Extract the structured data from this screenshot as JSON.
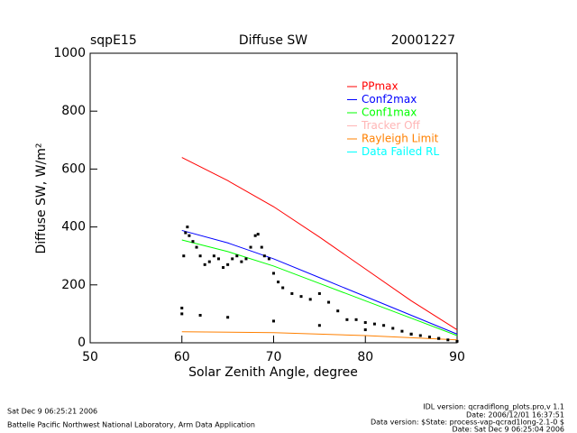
{
  "chart_data": {
    "type": "line",
    "site": "sqpE15",
    "title": "Diffuse SW",
    "date": "20001227",
    "xlabel": "Solar Zenith Angle, degree",
    "ylabel": "Diffuse SW, W/m²",
    "xlim": [
      50,
      90
    ],
    "xticks": [
      50,
      60,
      70,
      80,
      90
    ],
    "ylim": [
      0,
      1000
    ],
    "yticks": [
      0,
      200,
      400,
      600,
      800,
      1000
    ],
    "series": [
      {
        "name": "PPmax",
        "color": "#ff0000",
        "x": [
          60,
          65,
          70,
          75,
          80,
          85,
          90
        ],
        "values": [
          640,
          560,
          470,
          365,
          255,
          145,
          45
        ]
      },
      {
        "name": "Conf2max",
        "color": "#0000ff",
        "x": [
          60,
          65,
          70,
          75,
          80,
          85,
          90
        ],
        "values": [
          388,
          345,
          290,
          225,
          160,
          95,
          30
        ]
      },
      {
        "name": "Conf1max",
        "color": "#00ff00",
        "x": [
          60,
          65,
          70,
          75,
          80,
          85,
          90
        ],
        "values": [
          355,
          315,
          265,
          205,
          145,
          85,
          25
        ]
      },
      {
        "name": "Tracker Off",
        "color": "#ffb6b6",
        "x": [],
        "values": []
      },
      {
        "name": "Rayleigh Limit",
        "color": "#ff8000",
        "x": [
          60,
          70,
          80,
          90
        ],
        "values": [
          38,
          35,
          25,
          10
        ]
      },
      {
        "name": "Data Failed RL",
        "color": "#00ffff",
        "x": [],
        "values": []
      }
    ],
    "points": {
      "color": "#000000",
      "x": [
        60.0,
        60.2,
        60.4,
        60.6,
        60.8,
        61.2,
        61.6,
        62,
        62.5,
        63,
        63.5,
        64,
        64.5,
        65,
        65.5,
        66,
        66.5,
        67,
        67.5,
        68,
        68.3,
        68.7,
        69,
        69.5,
        70,
        70.5,
        71,
        72,
        73,
        74,
        75,
        76,
        77,
        78,
        79,
        80,
        81,
        82,
        83,
        84,
        85,
        86,
        87,
        88,
        89,
        90,
        60,
        62,
        65,
        70,
        75,
        80,
        85,
        88
      ],
      "values": [
        120,
        300,
        380,
        400,
        370,
        350,
        330,
        300,
        270,
        280,
        300,
        290,
        260,
        270,
        290,
        300,
        280,
        290,
        330,
        370,
        375,
        330,
        300,
        290,
        240,
        210,
        190,
        170,
        160,
        150,
        170,
        140,
        110,
        80,
        80,
        70,
        65,
        60,
        50,
        40,
        30,
        25,
        20,
        15,
        10,
        5,
        100,
        95,
        88,
        75,
        60,
        45,
        30,
        15
      ]
    },
    "footer_left": [
      "Sat Dec  9 06:25:21 2006",
      "Battelle Pacific Northwest National Laboratory, Arm Data Application"
    ],
    "footer_right": [
      "IDL version: qcradiflong_plots.pro,v 1.1",
      "Date: 2006/12/01 16:37:51",
      "Data version: $State: process-vap-qcrad1long-2.1-0 $",
      "Date: Sat Dec  9 06:25:04 2006"
    ]
  }
}
